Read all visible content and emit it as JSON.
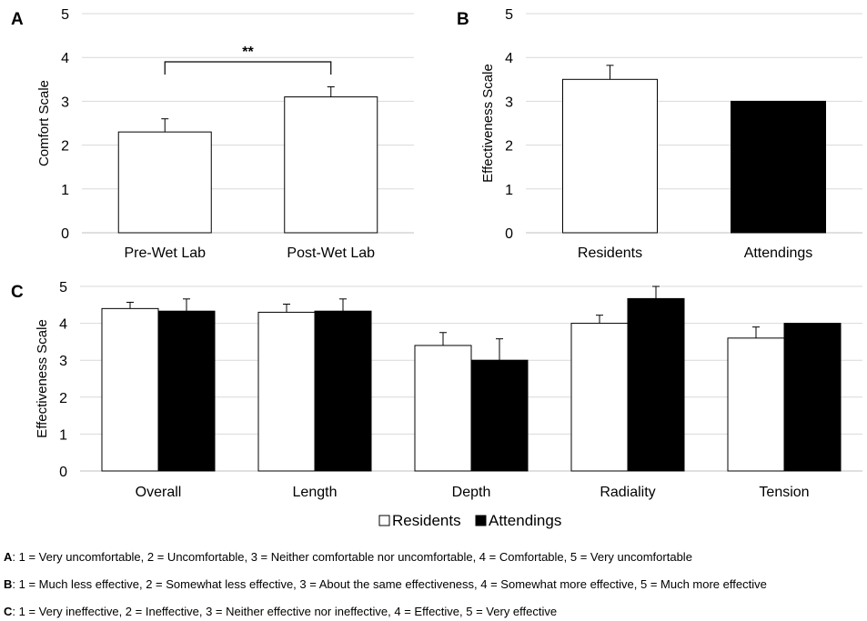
{
  "chart_data": [
    {
      "panel_label": "A",
      "type": "bar",
      "ylabel": "Comfort Scale",
      "ylim": [
        0,
        5
      ],
      "yticks": [
        "0",
        "1",
        "2",
        "3",
        "4",
        "5"
      ],
      "categories": [
        "Pre-Wet Lab",
        "Post-Wet Lab"
      ],
      "series": [
        {
          "fill": "#ffffff",
          "values": [
            2.3,
            3.1
          ],
          "errors": [
            0.3,
            0.23
          ]
        }
      ],
      "significance": {
        "label": "**",
        "from": 0,
        "to": 1,
        "y": 3.9
      },
      "grid": true
    },
    {
      "panel_label": "B",
      "type": "bar",
      "ylabel": "Effectiveness Scale",
      "ylim": [
        0,
        5
      ],
      "yticks": [
        "0",
        "1",
        "2",
        "3",
        "4",
        "5"
      ],
      "categories": [
        "Residents",
        "Attendings"
      ],
      "bars": [
        {
          "value": 3.5,
          "error": 0.32,
          "fill": "#ffffff"
        },
        {
          "value": 3.0,
          "error": 0,
          "fill": "#000000"
        }
      ],
      "grid": true
    },
    {
      "panel_label": "C",
      "type": "bar",
      "ylabel": "Effectiveness Scale",
      "ylim": [
        0,
        5
      ],
      "yticks": [
        "0",
        "1",
        "2",
        "3",
        "4",
        "5"
      ],
      "categories": [
        "Overall",
        "Length",
        "Depth",
        "Radiality",
        "Tension"
      ],
      "series": [
        {
          "name": "Residents",
          "fill": "#ffffff",
          "values": [
            4.4,
            4.3,
            3.4,
            4.0,
            3.6
          ],
          "errors": [
            0.17,
            0.22,
            0.35,
            0.22,
            0.3
          ]
        },
        {
          "name": "Attendings",
          "fill": "#000000",
          "values": [
            4.33,
            4.33,
            3.0,
            4.67,
            4.0
          ],
          "errors": [
            0.33,
            0.33,
            0.58,
            0.33,
            0
          ]
        }
      ],
      "legend": "bottom",
      "grid": true
    }
  ],
  "footnotes": [
    {
      "key": "A",
      "text": ": 1 = Very uncomfortable, 2 = Uncomfortable, 3 = Neither comfortable nor uncomfortable, 4 = Comfortable, 5 = Very uncomfortable"
    },
    {
      "key": "B",
      "text": ": 1 = Much less effective, 2 = Somewhat less effective, 3 = About the same effectiveness, 4 = Somewhat more effective, 5 = Much more effective"
    },
    {
      "key": "C",
      "text": ": 1 = Very ineffective, 2 = Ineffective, 3 = Neither effective nor ineffective, 4 = Effective, 5 = Very effective"
    }
  ]
}
